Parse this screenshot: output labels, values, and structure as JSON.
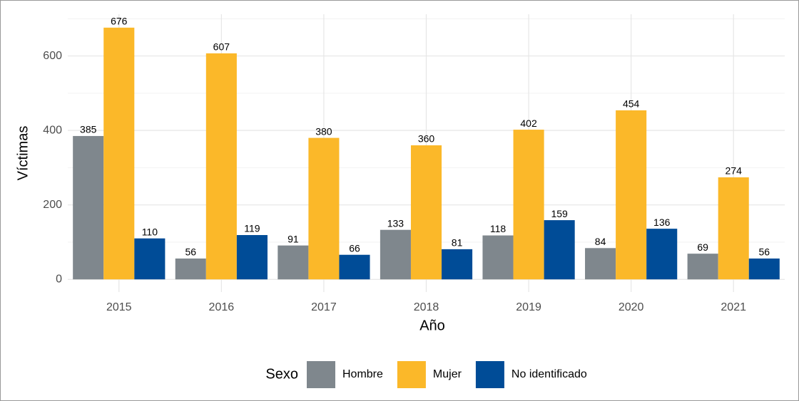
{
  "chart_data": {
    "type": "bar",
    "x_label": "Año",
    "y_label": "Víctimas",
    "legend_title": "Sexo",
    "categories": [
      "2015",
      "2016",
      "2017",
      "2018",
      "2019",
      "2020",
      "2021"
    ],
    "series": [
      {
        "name": "Hombre",
        "color": "#7f878d",
        "values": [
          385,
          56,
          91,
          133,
          118,
          84,
          69
        ]
      },
      {
        "name": "Mujer",
        "color": "#fbb829",
        "values": [
          676,
          607,
          380,
          360,
          402,
          454,
          274
        ]
      },
      {
        "name": "No identificado",
        "color": "#004c97",
        "values": [
          110,
          119,
          66,
          81,
          159,
          136,
          56
        ]
      }
    ],
    "ylim": [
      -34,
      712
    ],
    "yticks": [
      0,
      200,
      400,
      600
    ],
    "yticks_minor": [
      100,
      300,
      500,
      700
    ],
    "grid": true,
    "legend_position": "bottom"
  }
}
